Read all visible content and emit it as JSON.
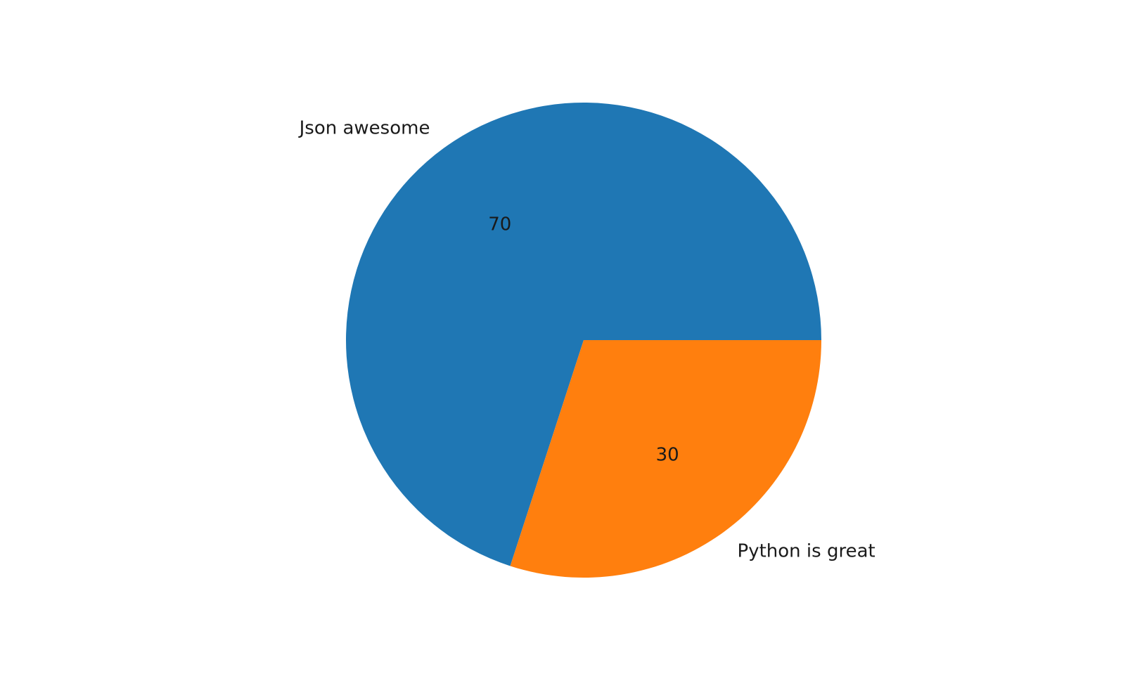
{
  "chart_data": {
    "type": "pie",
    "categories": [
      "Json awesome",
      "Python is great"
    ],
    "values": [
      70,
      30
    ],
    "value_labels": [
      "70",
      "30"
    ],
    "colors": [
      "#1f77b4",
      "#ff7f0e"
    ],
    "start_angle_deg": 0,
    "direction": "counterclockwise",
    "title": "",
    "legend": "none"
  }
}
